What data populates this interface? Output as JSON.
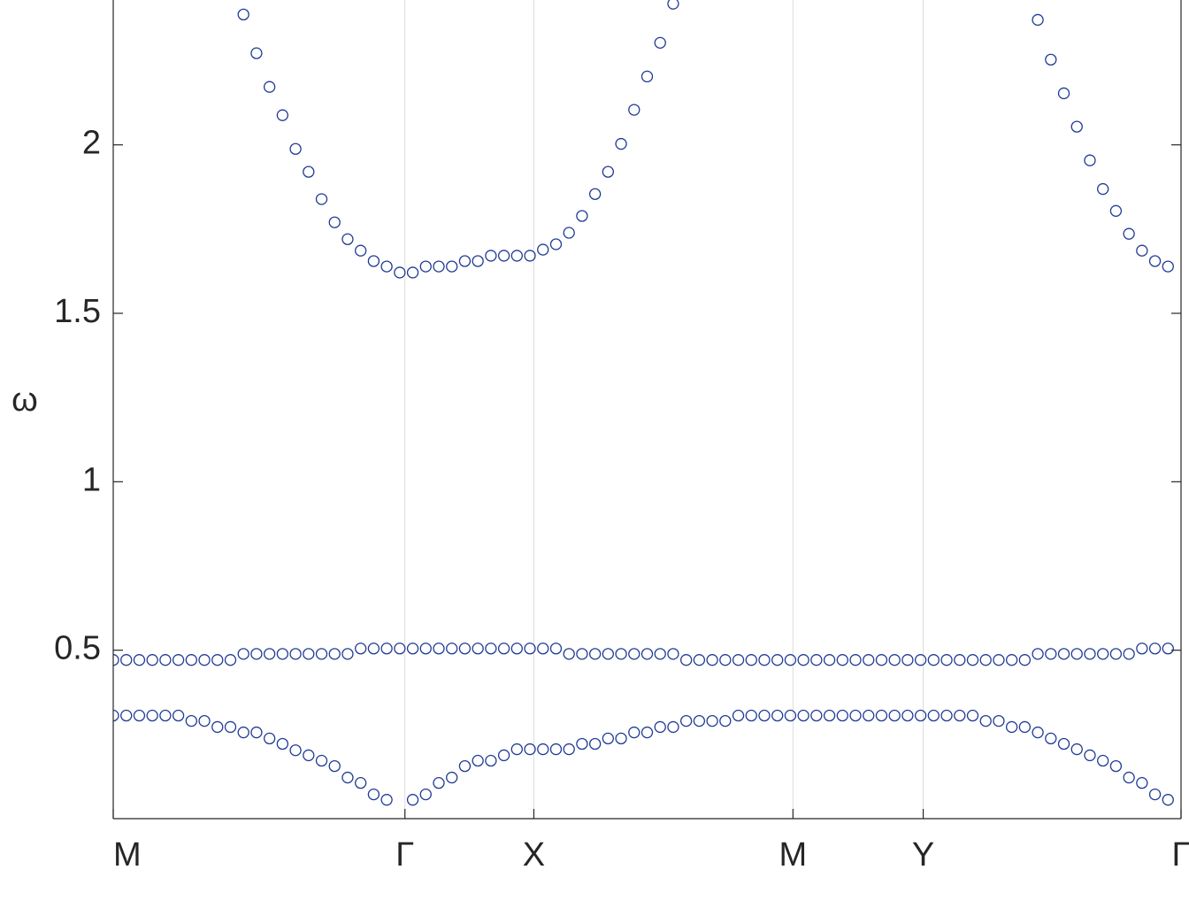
{
  "chart_data": {
    "type": "scatter",
    "y_label": "ω",
    "x": [
      0,
      1,
      2,
      3,
      4,
      5,
      6,
      7,
      8,
      9,
      10,
      11,
      12,
      13,
      14,
      15,
      16,
      17,
      18,
      19,
      20,
      21,
      22,
      23,
      24,
      25,
      26,
      27,
      28,
      29,
      30,
      31,
      32,
      33,
      34,
      35,
      36,
      37,
      38,
      39,
      40,
      41,
      42,
      43,
      44,
      45,
      46,
      47,
      48,
      49,
      50,
      51,
      52,
      53,
      54,
      55,
      56,
      57,
      58,
      59,
      60,
      61,
      62,
      63,
      64,
      65,
      66,
      67,
      68,
      69,
      70,
      71,
      72,
      73,
      74,
      75,
      76,
      77,
      78,
      79,
      80,
      81
    ],
    "series": [
      {
        "color": "#1f3a93",
        "values": [
          0.306,
          0.306,
          0.306,
          0.306,
          0.306,
          0.306,
          0.29,
          0.29,
          0.272,
          0.272,
          0.256,
          0.256,
          0.238,
          0.222,
          0.203,
          0.188,
          0.172,
          0.156,
          0.122,
          0.106,
          0.072,
          0.056,
          null,
          0.056,
          0.072,
          0.106,
          0.122,
          0.156,
          0.172,
          0.172,
          0.188,
          0.206,
          0.206,
          0.206,
          0.206,
          0.206,
          0.222,
          0.222,
          0.238,
          0.238,
          0.256,
          0.256,
          0.272,
          0.272,
          0.29,
          0.29,
          0.29,
          0.29,
          0.306,
          0.306,
          0.306,
          0.306,
          0.306,
          0.306,
          0.306,
          0.306,
          0.306,
          0.306,
          0.306,
          0.306,
          0.306,
          0.306,
          0.306,
          0.306,
          0.306,
          0.306,
          0.306,
          0.29,
          0.29,
          0.272,
          0.272,
          0.256,
          0.238,
          0.222,
          0.206,
          0.188,
          0.172,
          0.156,
          0.122,
          0.106,
          0.072,
          0.056
        ]
      },
      {
        "color": "#1f3a93",
        "values": [
          0.471,
          0.471,
          0.471,
          0.471,
          0.471,
          0.471,
          0.471,
          0.471,
          0.471,
          0.471,
          0.489,
          0.489,
          0.489,
          0.489,
          0.489,
          0.489,
          0.489,
          0.489,
          0.489,
          0.505,
          0.505,
          0.505,
          0.505,
          0.505,
          0.505,
          0.505,
          0.505,
          0.505,
          0.505,
          0.505,
          0.505,
          0.505,
          0.505,
          0.505,
          0.505,
          0.489,
          0.489,
          0.489,
          0.489,
          0.489,
          0.489,
          0.489,
          0.489,
          0.489,
          0.471,
          0.471,
          0.471,
          0.471,
          0.471,
          0.471,
          0.471,
          0.471,
          0.471,
          0.471,
          0.471,
          0.471,
          0.471,
          0.471,
          0.471,
          0.471,
          0.471,
          0.471,
          0.471,
          0.471,
          0.471,
          0.471,
          0.471,
          0.471,
          0.471,
          0.471,
          0.471,
          0.489,
          0.489,
          0.489,
          0.489,
          0.489,
          0.489,
          0.489,
          0.489,
          0.505,
          0.505,
          0.505
        ]
      },
      {
        "color": "#1f3a93",
        "values": [
          null,
          null,
          null,
          null,
          null,
          null,
          null,
          null,
          null,
          null,
          2.387,
          2.272,
          2.172,
          2.088,
          1.988,
          1.92,
          1.839,
          1.77,
          1.72,
          1.686,
          1.655,
          1.639,
          1.621,
          1.621,
          1.639,
          1.639,
          1.639,
          1.655,
          1.655,
          1.671,
          1.671,
          1.671,
          1.671,
          1.689,
          1.705,
          1.739,
          1.789,
          1.854,
          1.92,
          2.003,
          2.104,
          2.203,
          2.303,
          2.419,
          null,
          null,
          null,
          null,
          null,
          null,
          null,
          null,
          null,
          null,
          null,
          null,
          null,
          null,
          null,
          null,
          null,
          null,
          null,
          null,
          null,
          null,
          null,
          null,
          null,
          null,
          null,
          2.371,
          2.253,
          2.153,
          2.054,
          1.954,
          1.869,
          1.804,
          1.736,
          1.686,
          1.655,
          1.639
        ]
      }
    ],
    "xlim": [
      0,
      82
    ],
    "xticks": [
      {
        "value": 0,
        "label": "M"
      },
      {
        "value": 22.4,
        "label": "Γ"
      },
      {
        "value": 32.3,
        "label": "X"
      },
      {
        "value": 52.2,
        "label": "M"
      },
      {
        "value": 62.2,
        "label": "Y"
      },
      {
        "value": 82,
        "label": "Γ"
      }
    ],
    "ylim": [
      0,
      2.43
    ],
    "yticks": [
      0.5,
      1,
      1.5,
      2
    ],
    "grid": true
  }
}
